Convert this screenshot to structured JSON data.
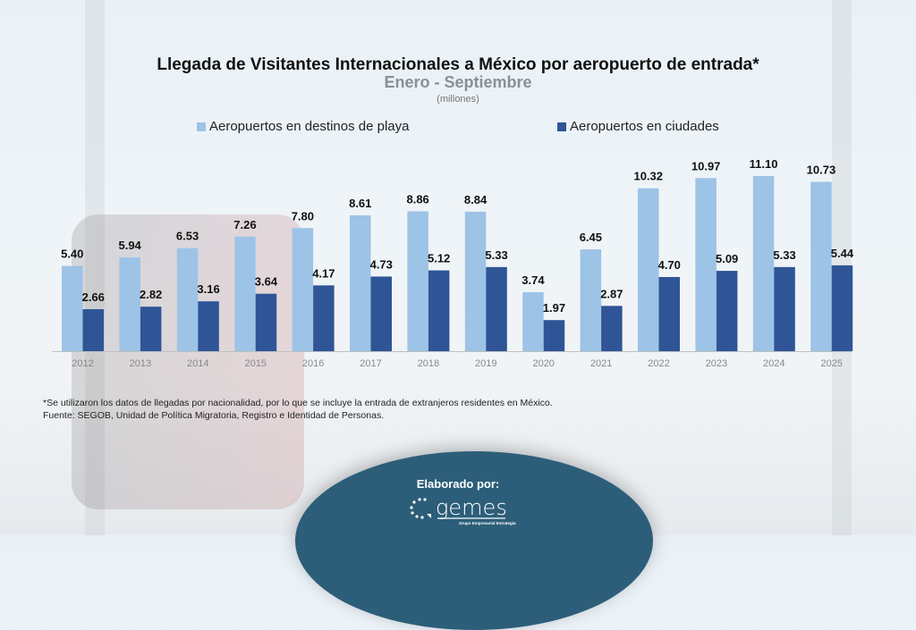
{
  "header": {
    "title": "Llegada de Visitantes Internacionales a México por aeropuerto de entrada*",
    "subtitle": "Enero - Septiembre",
    "units": "(millones)"
  },
  "chart_data": {
    "type": "bar",
    "title": "Llegada de Visitantes Internacionales a México por aeropuerto de entrada*",
    "subtitle": "Enero - Septiembre",
    "ylabel": "(millones)",
    "categories": [
      "2012",
      "2013",
      "2014",
      "2015",
      "2016",
      "2017",
      "2018",
      "2019",
      "2020",
      "2021",
      "2022",
      "2023",
      "2024",
      "2025"
    ],
    "series": [
      {
        "name": "Aeropuertos en destinos de playa",
        "color": "#9dc3e6",
        "values": [
          5.4,
          5.94,
          6.53,
          7.26,
          7.8,
          8.61,
          8.86,
          8.84,
          3.74,
          6.45,
          10.32,
          10.97,
          11.1,
          10.73
        ]
      },
      {
        "name": "Aeropuertos en ciudades",
        "color": "#2f5597",
        "values": [
          2.66,
          2.82,
          3.16,
          3.64,
          4.17,
          4.73,
          5.12,
          5.33,
          1.97,
          2.87,
          4.7,
          5.09,
          5.33,
          5.44
        ]
      }
    ],
    "ylim": [
      0,
      12
    ],
    "grid": false,
    "legend": "top"
  },
  "footer": {
    "note": "*Se utilizaron los datos de llegadas por nacionalidad, por lo que se incluye la entrada de extranjeros residentes en México.",
    "source": "Fuente: SEGOB, Unidad de Política Migratoria, Registro e Identidad de Personas.",
    "credit": "Elaborado por:",
    "logo_text": "gemes",
    "logo_tagline": "Grupo Empresarial Estrategia",
    "disc_color": "#2c5e79"
  }
}
